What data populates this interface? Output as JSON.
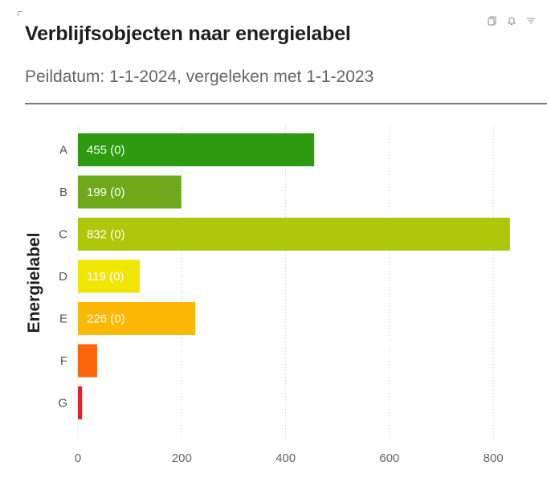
{
  "header": {
    "title": "Verblijfsobjecten naar energielabel",
    "subtitle": "Peildatum: 1-1-2024, vergeleken met 1-1-2023"
  },
  "toolbar": {
    "icons": [
      "copy-icon",
      "bell-icon",
      "filter-icon"
    ]
  },
  "chart_data": {
    "type": "bar",
    "orientation": "horizontal",
    "title": "Verblijfsobjecten naar energielabel",
    "ylabel": "Energielabel",
    "xlabel": "",
    "categories": [
      "A",
      "B",
      "C",
      "D",
      "E",
      "F",
      "G"
    ],
    "values": [
      455,
      199,
      832,
      119,
      226,
      37,
      8
    ],
    "data_labels": [
      "455 (0)",
      "199 (0)",
      "832 (0)",
      "119 (0)",
      "226 (0)",
      "",
      ""
    ],
    "colors": [
      "#2e9a0f",
      "#6fa81a",
      "#afc70a",
      "#f1e503",
      "#fdb705",
      "#fc640b",
      "#ef1e24"
    ],
    "xlim": [
      0,
      850
    ],
    "xticks": [
      0,
      200,
      400,
      600,
      800
    ],
    "xtick_labels": [
      "0",
      "200",
      "400",
      "600",
      "800"
    ],
    "grid": "vertical-dotted"
  }
}
